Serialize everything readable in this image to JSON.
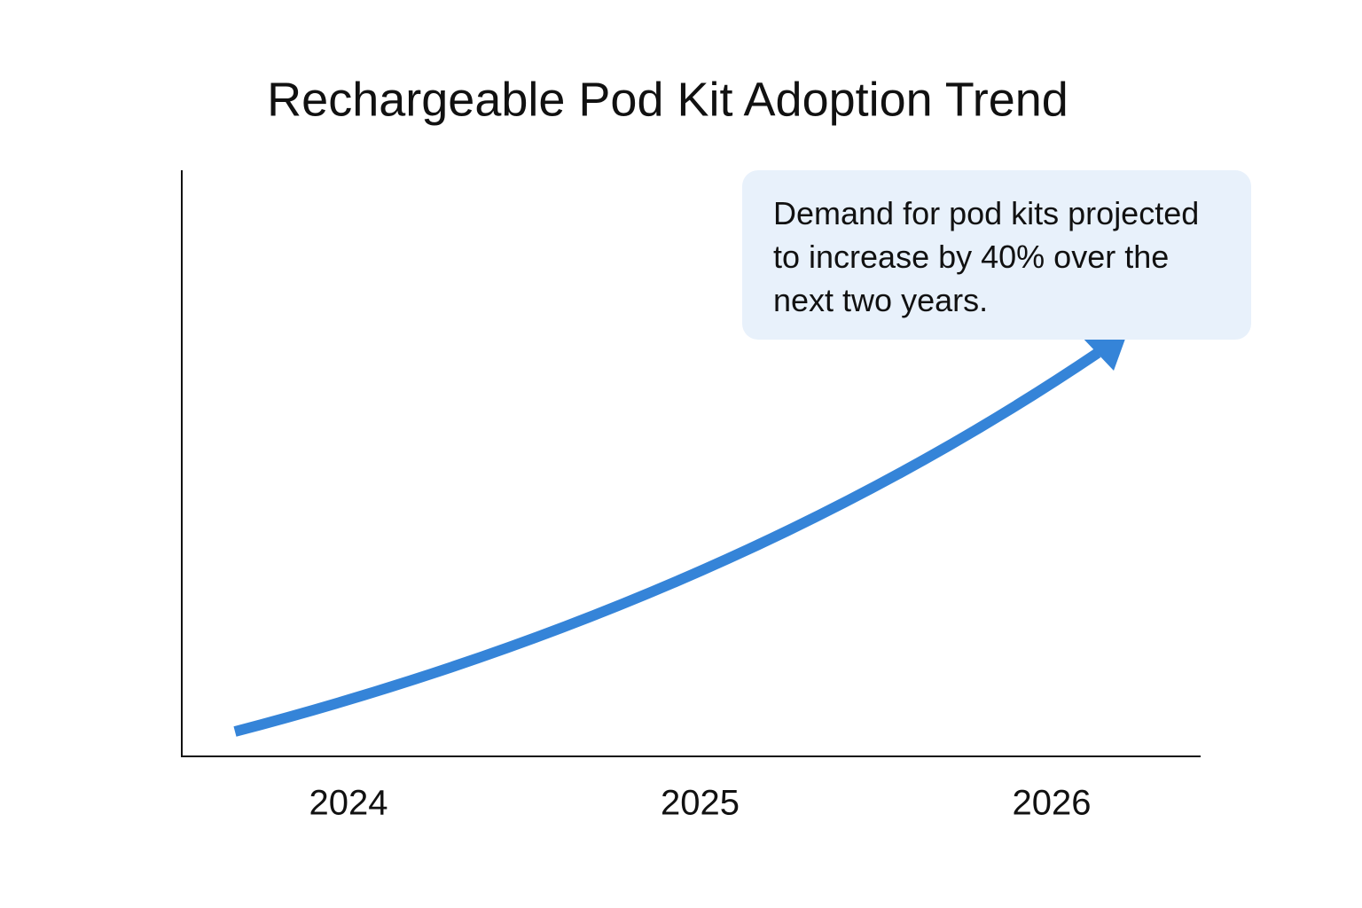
{
  "chart_data": {
    "type": "line",
    "title": "Rechargeable Pod Kit Adoption Trend",
    "categories": [
      "2024",
      "2025",
      "2026"
    ],
    "annotation": "Demand for pod kits projected to increase by 40% over the next two years.",
    "color": "#3584d8"
  }
}
